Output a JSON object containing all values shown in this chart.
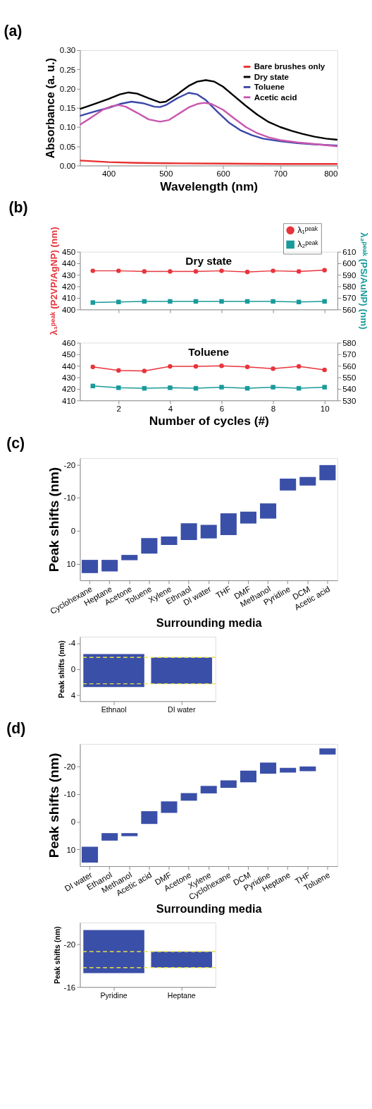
{
  "chart_data": [
    {
      "type": "line",
      "title": "(a)",
      "xlabel": "Wavelength (nm)",
      "ylabel": "Absorbance (a. u.)",
      "xlim": [
        350,
        800
      ],
      "xticks": [
        400,
        500,
        600,
        700,
        800
      ],
      "ylim": [
        0,
        0.3
      ],
      "yticks": [
        {
          "value": 0,
          "label": "0.00"
        },
        {
          "value": 0.05,
          "label": "0.05"
        },
        {
          "value": 0.1,
          "label": "0.10"
        },
        {
          "value": 0.15,
          "label": "0.15"
        },
        {
          "value": 0.2,
          "label": "0.20"
        },
        {
          "value": 0.25,
          "label": "0.25"
        },
        {
          "value": 0.3,
          "label": "0.30"
        }
      ],
      "legend": "top right",
      "grid": false,
      "series": [
        {
          "name": "Bare brushes only",
          "color": "#e83030",
          "x": [
            350,
            400,
            450,
            500,
            600,
            700,
            800
          ],
          "values": [
            0.013,
            0.009,
            0.007,
            0.006,
            0.005,
            0.004,
            0.004
          ]
        },
        {
          "name": "Dry state",
          "color": "#000000",
          "x": [
            350,
            375,
            400,
            420,
            435,
            450,
            470,
            490,
            500,
            520,
            540,
            555,
            570,
            585,
            600,
            620,
            640,
            660,
            680,
            700,
            720,
            740,
            760,
            780,
            800
          ],
          "values": [
            0.147,
            0.16,
            0.173,
            0.185,
            0.19,
            0.187,
            0.175,
            0.164,
            0.166,
            0.185,
            0.207,
            0.218,
            0.222,
            0.218,
            0.205,
            0.18,
            0.155,
            0.132,
            0.113,
            0.1,
            0.09,
            0.082,
            0.075,
            0.07,
            0.067
          ]
        },
        {
          "name": "Toluene",
          "color": "#3a47a8",
          "x": [
            350,
            375,
            400,
            420,
            440,
            460,
            480,
            490,
            500,
            520,
            540,
            555,
            570,
            590,
            610,
            630,
            650,
            670,
            700,
            730,
            760,
            800
          ],
          "values": [
            0.129,
            0.14,
            0.15,
            0.16,
            0.166,
            0.162,
            0.153,
            0.152,
            0.157,
            0.175,
            0.189,
            0.185,
            0.17,
            0.14,
            0.112,
            0.092,
            0.079,
            0.07,
            0.063,
            0.058,
            0.055,
            0.052
          ]
        },
        {
          "name": "Acetic acid",
          "color": "#c857b0",
          "x": [
            350,
            370,
            390,
            405,
            418,
            430,
            450,
            470,
            490,
            505,
            520,
            540,
            555,
            567,
            580,
            600,
            620,
            640,
            660,
            680,
            700,
            730,
            760,
            800
          ],
          "values": [
            0.106,
            0.125,
            0.145,
            0.154,
            0.157,
            0.153,
            0.137,
            0.12,
            0.114,
            0.118,
            0.132,
            0.151,
            0.16,
            0.163,
            0.16,
            0.145,
            0.122,
            0.1,
            0.084,
            0.073,
            0.066,
            0.06,
            0.056,
            0.05
          ]
        }
      ]
    },
    {
      "type": "line",
      "title": "(b)",
      "ylabel": "λ₁ᵖᵉᵃᵏ (P2VP/AgNP) (nm)",
      "y2label": "λ₂ᵖᵉᵃᵏ (PS/AuNP) (nm)",
      "annotations": [
        "Dry state"
      ],
      "x": [
        1,
        2,
        3,
        4,
        5,
        6,
        7,
        8,
        9,
        10
      ],
      "xlim": [
        0.5,
        10.5
      ],
      "xticks": [
        2,
        4,
        6,
        8,
        10
      ],
      "ylim": [
        400,
        450
      ],
      "yticks": [
        400,
        410,
        420,
        430,
        440,
        450
      ],
      "y2lim": [
        560,
        610
      ],
      "y2ticks": [
        560,
        570,
        580,
        590,
        600,
        610
      ],
      "tick_labels": "y",
      "legend": "top right",
      "grid": false,
      "series": [
        {
          "name": "λ₁ᵖᵉᵃᵏ",
          "color": "#e8343c",
          "marker": "circle",
          "values": [
            433.5,
            433.5,
            433,
            433,
            433,
            433.5,
            432.5,
            433.5,
            433,
            434
          ]
        },
        {
          "name": "λ₂ᵖᵉᵃᵏ",
          "color": "#1a9a9a",
          "marker": "square",
          "axis": "y2",
          "values": [
            566,
            566.5,
            567,
            567,
            567,
            567,
            567,
            567,
            566.5,
            567
          ]
        }
      ]
    },
    {
      "type": "line",
      "xlabel": "Number of cycles (#)",
      "annotations": [
        "Toluene"
      ],
      "x": [
        1,
        2,
        3,
        4,
        5,
        6,
        7,
        8,
        9,
        10
      ],
      "xlim": [
        0.5,
        10.5
      ],
      "xticks": [
        2,
        4,
        6,
        8,
        10
      ],
      "ylim": [
        410,
        460
      ],
      "yticks": [
        410,
        420,
        430,
        440,
        450,
        460
      ],
      "y2lim": [
        530,
        580
      ],
      "y2ticks": [
        530,
        540,
        550,
        560,
        570,
        580
      ],
      "grid": false,
      "series": [
        {
          "color": "#e8343c",
          "marker": "circle",
          "values": [
            439,
            436,
            435.5,
            439.5,
            439.5,
            440,
            439,
            437.5,
            439.5,
            436.5
          ]
        },
        {
          "color": "#1a9a9a",
          "marker": "square",
          "axis": "y2",
          "values": [
            542.5,
            541,
            540.5,
            541,
            540.5,
            541.5,
            540.5,
            541.5,
            540.5,
            541.5
          ]
        }
      ]
    },
    {
      "type": "bar",
      "title": "(c)",
      "xlabel": "Surrounding media",
      "ylabel": "Peak shifts (nm)",
      "ylim": [
        15,
        -22
      ],
      "yticks": [
        10,
        0,
        -10,
        -20
      ],
      "grid": false,
      "categories": [
        "Cyclohexane",
        "Heptane",
        "Acetone",
        "Toluene",
        "Xylene",
        "Ethnaol",
        "DI water",
        "THF",
        "DMF",
        "Methanol",
        "Pyridine",
        "DCM",
        "Acetic acid"
      ],
      "base": [
        8.8,
        8.8,
        7.3,
        2.2,
        1.7,
        -2.3,
        -1.8,
        -5.3,
        -5.8,
        -8.3,
        -15.8,
        -16.3,
        -19.9
      ],
      "values": [
        4.0,
        3.5,
        1.6,
        4.7,
        2.6,
        5.1,
        4.1,
        6.6,
        3.6,
        4.6,
        3.6,
        2.6,
        4.6
      ],
      "colors": [
        "#3a4fa8",
        "#3a4fa8",
        "#3a4fa8",
        "#3a4fa8",
        "#3a4fa8",
        "#3a4fa8",
        "#3a4fa8",
        "#3a4fa8",
        "#3a4fa8",
        "#3a4fa8",
        "#3a4fa8",
        "#3a4fa8",
        "#3a4fa8"
      ]
    },
    {
      "type": "bar",
      "ylabel": "Peak shifts (nm)",
      "ylim": [
        5,
        -5
      ],
      "yticks": [
        4,
        0,
        -4
      ],
      "grid": false,
      "categories": [
        "Ethnaol",
        "DI water"
      ],
      "base": [
        -2.3,
        -1.8
      ],
      "values": [
        5.1,
        4.1
      ],
      "colors": [
        "#3a4fa8",
        "#3a4fa8"
      ],
      "ref_lines": [
        {
          "axis": "y",
          "value": -1.8,
          "color": "#e8e040",
          "line_style": "dashed"
        },
        {
          "axis": "y",
          "value": 2.3,
          "color": "#e8e040",
          "line_style": "dashed"
        }
      ]
    },
    {
      "type": "bar",
      "title": "(d)",
      "xlabel": "Surrounding media",
      "ylabel": "Peak shifts (nm)",
      "ylim": [
        16,
        -28
      ],
      "yticks": [
        10,
        0,
        -10,
        -20
      ],
      "grid": false,
      "categories": [
        "DI water",
        "Ethanol",
        "Methanol",
        "Acetic acid",
        "DMF",
        "Acetone",
        "Xylene",
        "Cyclohexane",
        "DCM",
        "Pyridine",
        "Heptane",
        "THF",
        "Toluene"
      ],
      "base": [
        9.0,
        4.1,
        4.1,
        -3.8,
        -7.3,
        -10.3,
        -12.9,
        -14.9,
        -18.4,
        -21.3,
        -19.4,
        -19.9,
        -26.4
      ],
      "values": [
        5.7,
        2.7,
        1.1,
        4.6,
        4.1,
        2.7,
        2.7,
        2.7,
        4.2,
        4.0,
        1.7,
        1.7,
        2.2
      ],
      "colors": [
        "#3a4fa8",
        "#3a4fa8",
        "#3a4fa8",
        "#3a4fa8",
        "#3a4fa8",
        "#3a4fa8",
        "#3a4fa8",
        "#3a4fa8",
        "#3a4fa8",
        "#3a4fa8",
        "#3a4fa8",
        "#3a4fa8",
        "#3a4fa8"
      ]
    },
    {
      "type": "bar",
      "ylabel": "Peak shifts (nm)",
      "ylim": [
        -16,
        -22
      ],
      "yticks": [
        -20,
        -16
      ],
      "grid": false,
      "categories": [
        "Pyridine",
        "Heptane"
      ],
      "base": [
        -21.3,
        -19.3
      ],
      "values": [
        4.0,
        1.5
      ],
      "colors": [
        "#3a4fa8",
        "#3a4fa8"
      ],
      "ref_lines": [
        {
          "axis": "y",
          "value": -19.3,
          "color": "#e8e040",
          "line_style": "dashed"
        },
        {
          "axis": "y",
          "value": -17.8,
          "color": "#e8e040",
          "line_style": "dashed"
        }
      ]
    }
  ]
}
